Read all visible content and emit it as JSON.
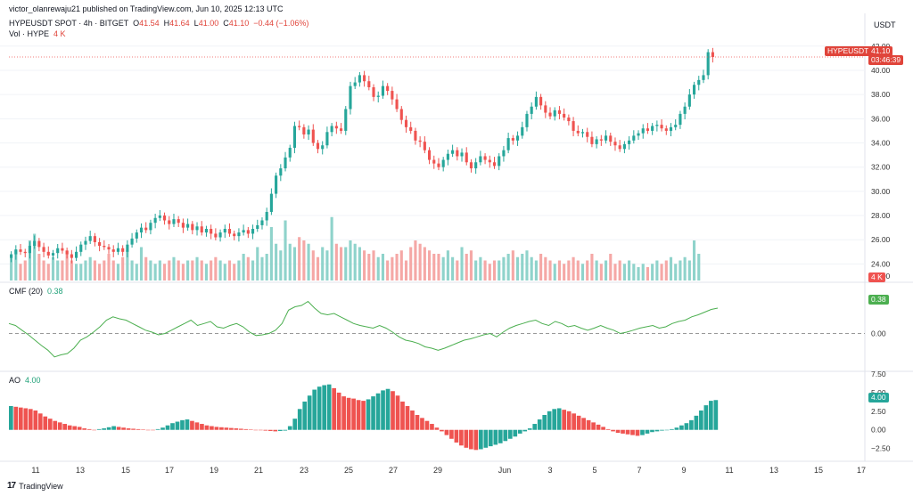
{
  "publish_line": "victor_olanrewaju21 published on TradingView.com, Jun 10, 2025 12:13 UTC",
  "symbol_line": {
    "symbol": "HYPEUSDT SPOT · 4h · BITGET",
    "o_label": "O",
    "o": "41.54",
    "h_label": "H",
    "h": "41.64",
    "l_label": "L",
    "l": "41.00",
    "c_label": "C",
    "c": "41.10",
    "change": "−0.44 (−1.06%)"
  },
  "vol_line": {
    "label": "Vol · HYPE",
    "value": "4 K"
  },
  "cmf_line": {
    "label": "CMF (20)",
    "value": "0.38"
  },
  "ao_line": {
    "label": "AO",
    "value": "4.00"
  },
  "currency": "USDT",
  "price_tag": {
    "symbol": "HYPEUSDT",
    "price": "41.10",
    "countdown": "03:46:39"
  },
  "vol_tag": "4 K",
  "cmf_tag": "0.38",
  "ao_tag": "4.00",
  "price_ticks": [
    "42.00",
    "40.00",
    "38.00",
    "36.00",
    "34.00",
    "32.00",
    "30.00",
    "28.00",
    "26.00",
    "24.00",
    "24.00"
  ],
  "cmf_ticks": [
    "0.50",
    "0.00"
  ],
  "ao_ticks": [
    "7.50",
    "5.00",
    "2.50",
    "0.00",
    "−2.50"
  ],
  "x_ticks": [
    "11",
    "13",
    "15",
    "17",
    "19",
    "21",
    "23",
    "25",
    "27",
    "29",
    "Jun",
    "3",
    "5",
    "7",
    "9",
    "11",
    "13",
    "15",
    "17"
  ],
  "brand": "TradingView",
  "colors": {
    "up": "#26a69a",
    "down": "#ef5350",
    "cmf": "#4caf50",
    "grid": "#f0f3f7"
  },
  "chart_data": [
    {
      "type": "candlestick",
      "title": "HYPEUSDT SPOT · 4h · BITGET",
      "ylabel": "USDT",
      "ylim": [
        23,
        42.5
      ],
      "x_range": [
        "May 10",
        "Jun 12"
      ],
      "close_series": [
        24.8,
        25.2,
        25.0,
        24.9,
        25.5,
        25.9,
        25.4,
        25.0,
        24.7,
        24.9,
        25.3,
        25.1,
        24.8,
        24.5,
        25.0,
        25.6,
        25.9,
        26.3,
        25.8,
        25.5,
        25.4,
        25.2,
        25.0,
        25.3,
        25.0,
        25.6,
        26.1,
        26.6,
        27.0,
        26.8,
        27.4,
        27.8,
        28.0,
        27.6,
        27.3,
        27.7,
        27.4,
        27.0,
        27.3,
        26.8,
        27.1,
        26.6,
        26.9,
        26.5,
        26.2,
        26.6,
        26.9,
        26.5,
        26.3,
        26.6,
        26.8,
        26.5,
        26.9,
        27.2,
        27.6,
        28.3,
        29.8,
        31.3,
        31.9,
        32.8,
        33.6,
        35.4,
        35.3,
        34.7,
        35.1,
        34.0,
        33.5,
        33.8,
        34.9,
        35.4,
        35.2,
        35.0,
        36.8,
        38.7,
        39.0,
        39.6,
        39.1,
        38.6,
        37.8,
        37.9,
        38.7,
        38.3,
        37.6,
        36.8,
        35.9,
        35.3,
        35.0,
        34.2,
        34.1,
        33.4,
        32.6,
        32.3,
        32.0,
        32.6,
        33.1,
        33.4,
        32.9,
        33.2,
        32.4,
        31.9,
        32.4,
        32.9,
        32.6,
        32.4,
        32.1,
        32.9,
        33.4,
        34.4,
        34.2,
        34.6,
        35.3,
        36.4,
        37.0,
        37.8,
        37.1,
        36.5,
        36.2,
        36.7,
        36.4,
        36.1,
        35.8,
        35.0,
        34.8,
        34.9,
        34.5,
        33.9,
        34.3,
        34.2,
        34.6,
        34.1,
        33.8,
        33.5,
        33.9,
        34.2,
        34.6,
        34.8,
        35.2,
        35.0,
        35.4,
        35.5,
        35.2,
        35.0,
        35.3,
        35.5,
        36.4,
        37.0,
        38.0,
        38.8,
        39.2,
        39.6,
        41.5,
        41.1
      ],
      "volume_scale": [
        0.35,
        0.45,
        0.25,
        0.3,
        0.6,
        0.7,
        0.4,
        0.3,
        0.25,
        0.35,
        0.3,
        0.3,
        0.45,
        0.3,
        0.25,
        0.25,
        0.3,
        0.35,
        0.3,
        0.25,
        0.3,
        0.4,
        0.3,
        0.25,
        0.35,
        0.45,
        0.3,
        0.25,
        0.5,
        0.35,
        0.3,
        0.25,
        0.3,
        0.25,
        0.3,
        0.35,
        0.3,
        0.25,
        0.3,
        0.3,
        0.35,
        0.3,
        0.25,
        0.3,
        0.35,
        0.3,
        0.25,
        0.3,
        0.25,
        0.3,
        0.4,
        0.35,
        0.3,
        0.5,
        0.35,
        0.4,
        0.8,
        0.55,
        0.45,
        0.9,
        0.55,
        0.5,
        0.65,
        0.6,
        0.55,
        0.45,
        0.35,
        0.5,
        0.45,
        0.95,
        0.55,
        0.5,
        0.5,
        0.6,
        0.55,
        0.5,
        0.45,
        0.4,
        0.45,
        0.35,
        0.4,
        0.3,
        0.35,
        0.4,
        0.45,
        0.3,
        0.5,
        0.6,
        0.55,
        0.5,
        0.45,
        0.4,
        0.4,
        0.35,
        0.45,
        0.35,
        0.3,
        0.5,
        0.4,
        0.45,
        0.3,
        0.35,
        0.3,
        0.25,
        0.3,
        0.3,
        0.35,
        0.4,
        0.45,
        0.35,
        0.4,
        0.45,
        0.35,
        0.3,
        0.4,
        0.35,
        0.3,
        0.25,
        0.3,
        0.25,
        0.3,
        0.35,
        0.3,
        0.25,
        0.3,
        0.4,
        0.3,
        0.25,
        0.3,
        0.4,
        0.25,
        0.3,
        0.25,
        0.3,
        0.25,
        0.2,
        0.25,
        0.2,
        0.25,
        0.3,
        0.25,
        0.3,
        0.35,
        0.25,
        0.3,
        0.35,
        0.3,
        0.6,
        0.4
      ]
    },
    {
      "type": "line",
      "title": "CMF (20)",
      "ylim": [
        -0.5,
        0.7
      ],
      "values": [
        0.15,
        0.12,
        0.05,
        -0.02,
        -0.1,
        -0.18,
        -0.25,
        -0.35,
        -0.32,
        -0.3,
        -0.22,
        -0.1,
        -0.05,
        0.02,
        0.1,
        0.2,
        0.25,
        0.22,
        0.2,
        0.15,
        0.1,
        0.05,
        0.02,
        -0.02,
        0.0,
        0.05,
        0.1,
        0.15,
        0.2,
        0.12,
        0.15,
        0.18,
        0.1,
        0.08,
        0.12,
        0.15,
        0.1,
        0.02,
        -0.03,
        -0.02,
        0.0,
        0.05,
        0.15,
        0.35,
        0.4,
        0.42,
        0.48,
        0.38,
        0.3,
        0.28,
        0.3,
        0.25,
        0.2,
        0.15,
        0.12,
        0.1,
        0.08,
        0.12,
        0.08,
        0.02,
        -0.05,
        -0.1,
        -0.12,
        -0.15,
        -0.2,
        -0.22,
        -0.25,
        -0.22,
        -0.18,
        -0.14,
        -0.1,
        -0.08,
        -0.05,
        -0.02,
        0.0,
        -0.05,
        0.02,
        0.08,
        0.12,
        0.15,
        0.18,
        0.2,
        0.15,
        0.12,
        0.18,
        0.15,
        0.1,
        0.12,
        0.08,
        0.05,
        0.08,
        0.12,
        0.08,
        0.05,
        0.0,
        0.02,
        0.05,
        0.08,
        0.1,
        0.12,
        0.08,
        0.1,
        0.15,
        0.18,
        0.2,
        0.25,
        0.28,
        0.32,
        0.36,
        0.38
      ]
    },
    {
      "type": "bar",
      "title": "AO",
      "ylim": [
        -3.5,
        7.5
      ],
      "values": [
        3.2,
        3.1,
        3.0,
        2.9,
        2.8,
        2.6,
        2.2,
        1.8,
        1.5,
        1.2,
        1.0,
        0.8,
        0.6,
        0.5,
        0.4,
        0.2,
        0.1,
        0.0,
        0.1,
        0.2,
        0.35,
        0.5,
        0.4,
        0.3,
        0.2,
        0.15,
        0.1,
        0.05,
        0.0,
        -0.05,
        0.1,
        0.3,
        0.6,
        0.9,
        1.1,
        1.3,
        1.4,
        1.2,
        1.0,
        0.8,
        0.6,
        0.5,
        0.4,
        0.35,
        0.3,
        0.25,
        0.2,
        0.15,
        0.1,
        0.05,
        0.0,
        -0.05,
        -0.1,
        -0.15,
        -0.2,
        -0.15,
        -0.1,
        0.5,
        1.5,
        2.8,
        3.8,
        4.6,
        5.4,
        5.8,
        6.0,
        6.1,
        5.6,
        5.0,
        4.5,
        4.3,
        4.2,
        4.0,
        3.9,
        4.1,
        4.5,
        4.9,
        5.3,
        5.5,
        5.2,
        4.6,
        3.8,
        3.2,
        2.6,
        2.0,
        1.6,
        1.2,
        0.8,
        0.3,
        -0.2,
        -0.7,
        -1.2,
        -1.7,
        -2.1,
        -2.4,
        -2.6,
        -2.7,
        -2.6,
        -2.4,
        -2.2,
        -2.0,
        -1.8,
        -1.5,
        -1.2,
        -0.9,
        -0.5,
        -0.2,
        0.2,
        0.8,
        1.4,
        2.0,
        2.5,
        2.8,
        2.9,
        2.7,
        2.5,
        2.2,
        1.9,
        1.6,
        1.3,
        1.0,
        0.7,
        0.4,
        0.1,
        -0.2,
        -0.4,
        -0.5,
        -0.6,
        -0.7,
        -0.8,
        -0.7,
        -0.5,
        -0.3,
        -0.2,
        -0.1,
        0.0,
        0.1,
        0.3,
        0.6,
        0.9,
        1.3,
        1.9,
        2.6,
        3.3,
        3.9,
        4.0
      ]
    }
  ]
}
